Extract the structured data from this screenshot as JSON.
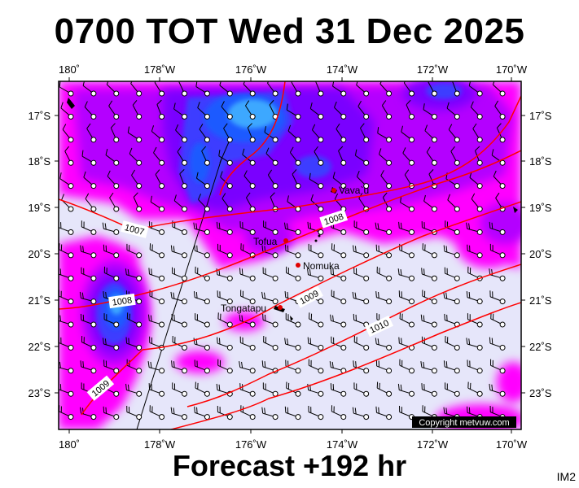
{
  "header": {
    "title": "0700 TOT Wed 31 Dec 2025"
  },
  "footer": {
    "subtitle": "Forecast +192 hr",
    "code": "IM2"
  },
  "copyright": "Copyright metvuw.com",
  "axes": {
    "lon_labels": [
      "180˚",
      "178˚W",
      "176˚W",
      "174˚W",
      "172˚W",
      "170˚W"
    ],
    "lat_labels": [
      "17˚S",
      "18˚S",
      "19˚S",
      "20˚S",
      "21˚S",
      "22˚S",
      "23˚S"
    ]
  },
  "places": [
    {
      "name": "Vava`u"
    },
    {
      "name": "Tofua"
    },
    {
      "name": "Nomuka"
    },
    {
      "name": "Tongatapu"
    }
  ],
  "isobars": [
    {
      "label": "1007"
    },
    {
      "label": "1008"
    },
    {
      "label": "1008"
    },
    {
      "label": "1009"
    },
    {
      "label": "1009"
    },
    {
      "label": "1010"
    }
  ],
  "colors": {
    "background": "#e6e6fa",
    "magenta": "#ff00ff",
    "violet": "#b400ff",
    "purple": "#7a00ff",
    "blue": "#3d3dff",
    "royal": "#1e5aff",
    "cyan": "#3ca8ff",
    "isobar": "#ff0000"
  }
}
